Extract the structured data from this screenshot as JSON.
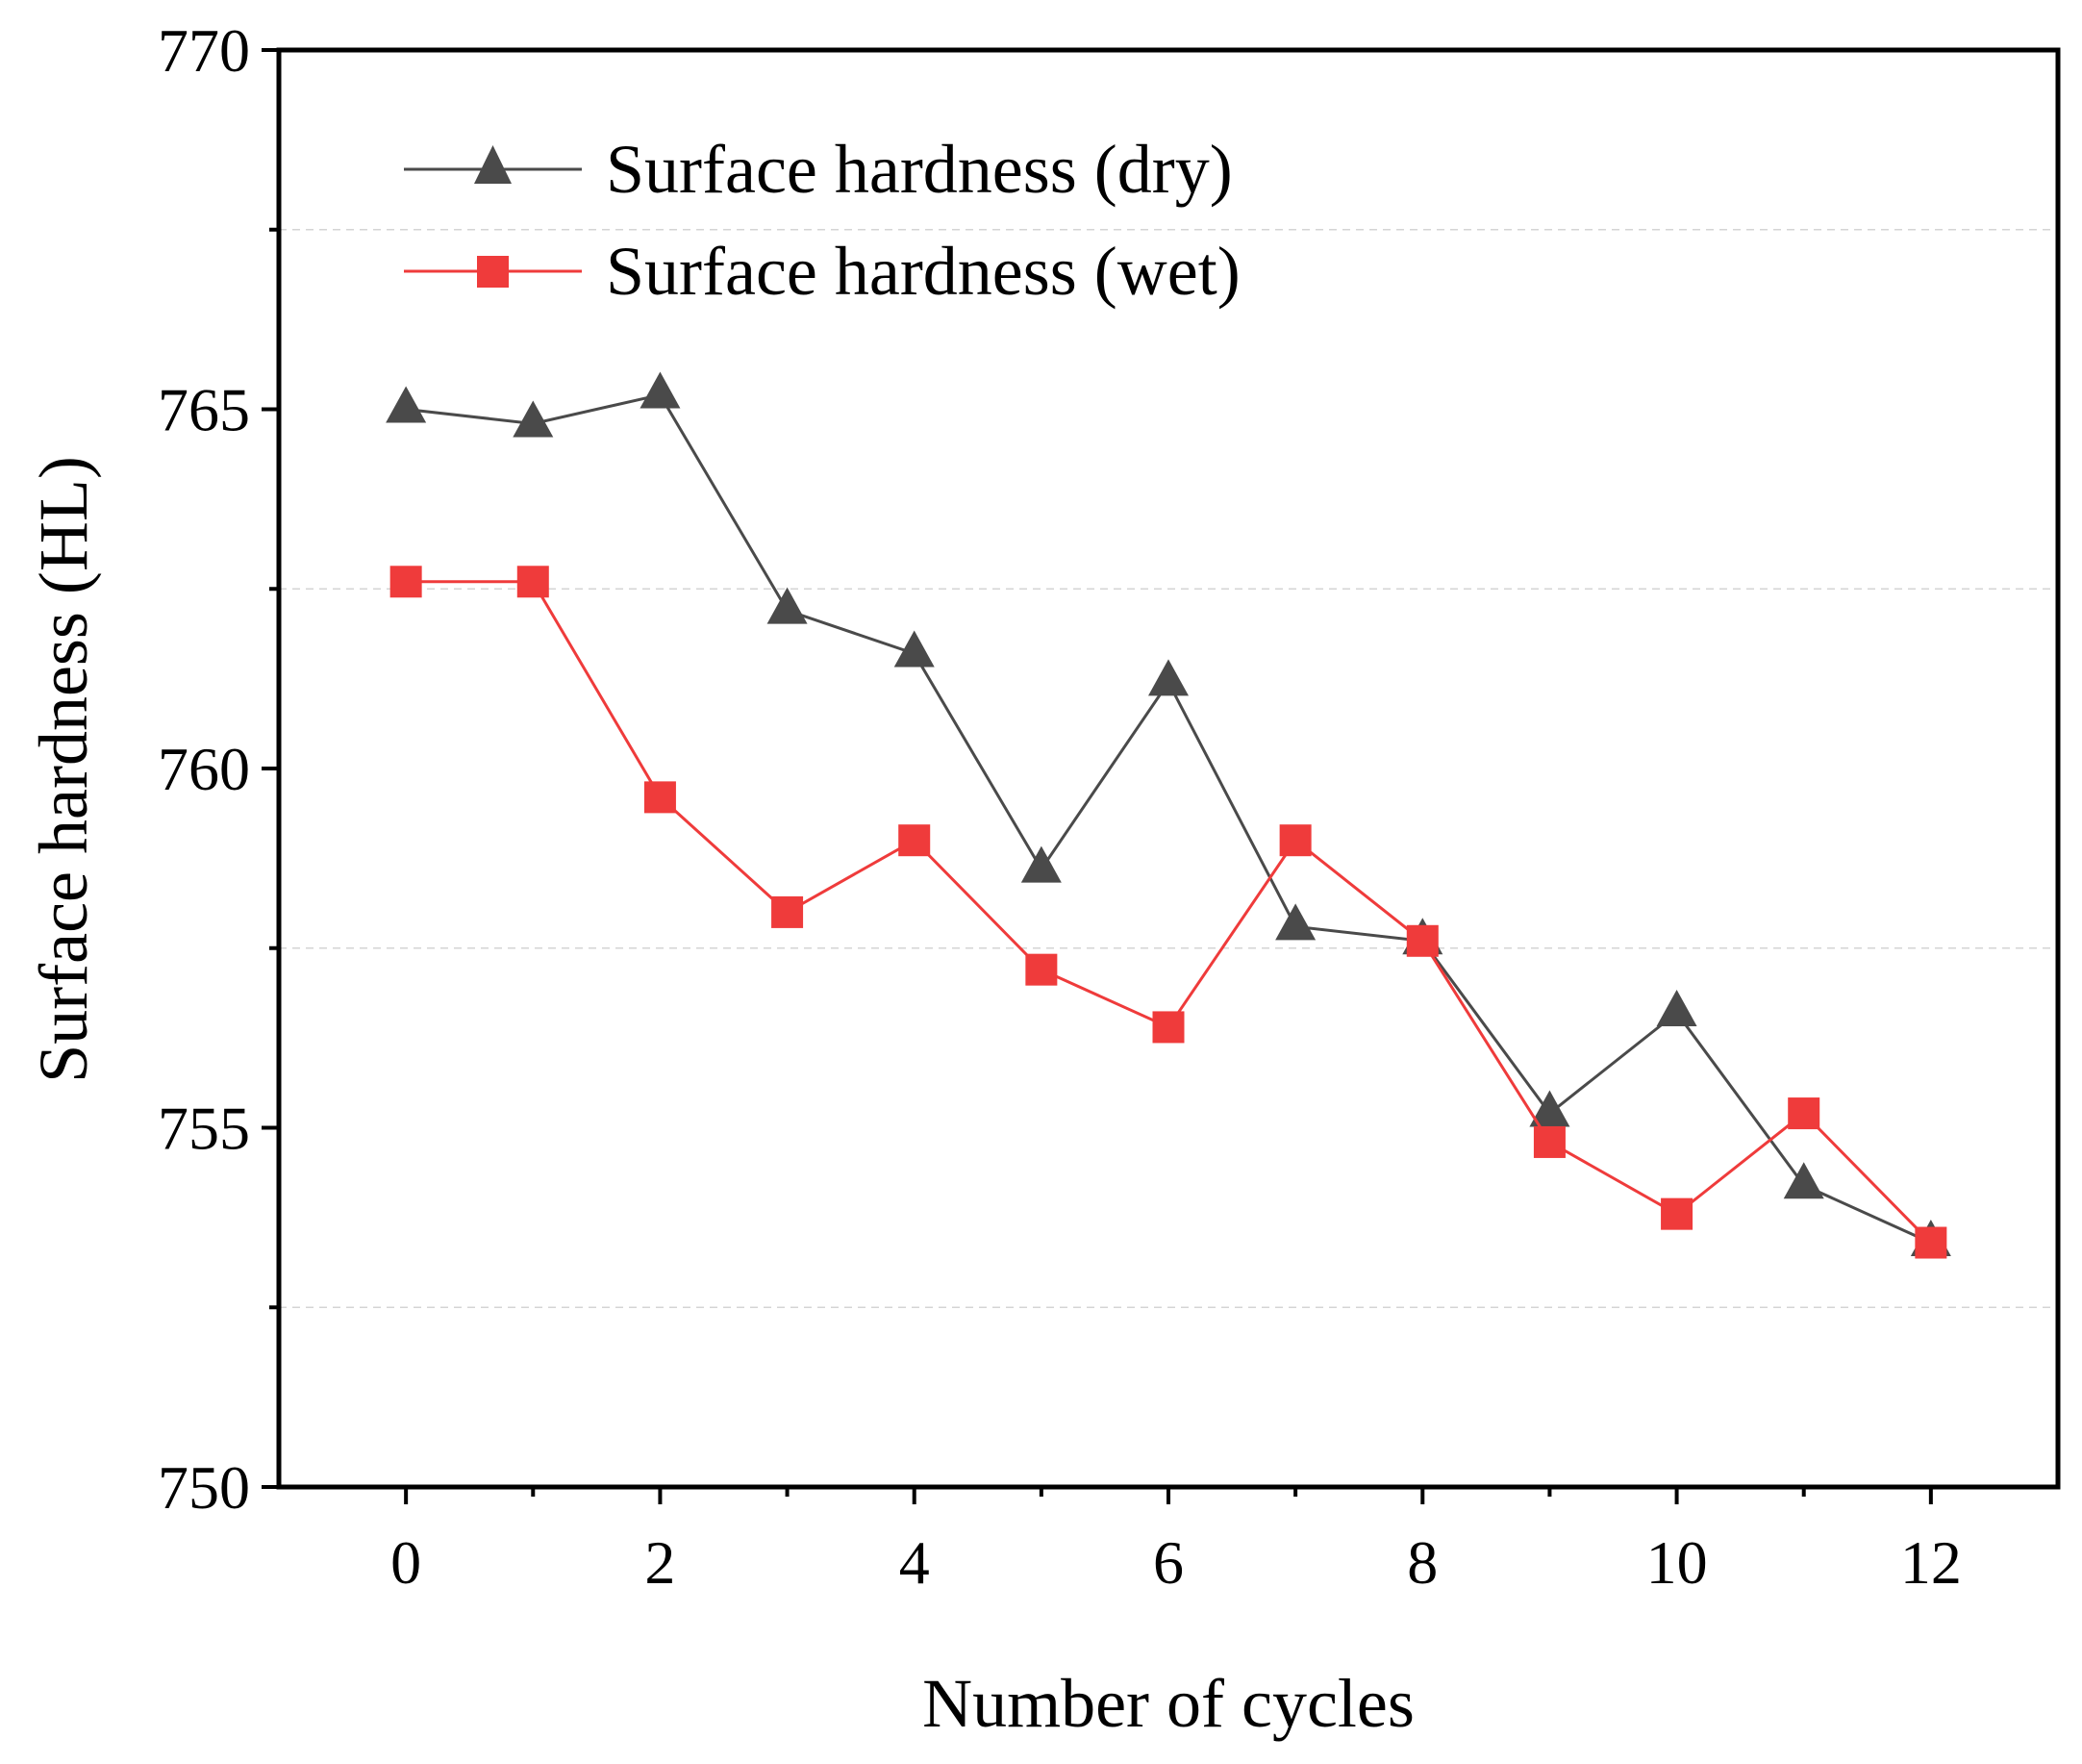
{
  "chart_data": {
    "type": "line",
    "title": "",
    "xlabel": "Number of cycles",
    "ylabel": "Surface hardness (HL)",
    "x": [
      0,
      1,
      2,
      3,
      4,
      5,
      6,
      7,
      8,
      9,
      10,
      11,
      12
    ],
    "xlim": [
      -1,
      13
    ],
    "ylim": [
      750,
      770
    ],
    "xticks": [
      0,
      2,
      4,
      6,
      8,
      10,
      12
    ],
    "xtick_labels": [
      "0",
      "2",
      "4",
      "6",
      "8",
      "10",
      "12"
    ],
    "yticks": [
      750,
      755,
      760,
      765,
      770
    ],
    "ytick_labels": [
      "750",
      "755",
      "760",
      "765",
      "770"
    ],
    "grid": "horizontal dashed at 752.5, 757.5, 762.5, 767.5",
    "legend_position": "top-left",
    "series": [
      {
        "name": "Surface hardness (dry)",
        "marker": "triangle",
        "color": "#4a4a4a",
        "values": [
          765.0,
          764.8,
          765.2,
          762.2,
          761.6,
          758.6,
          761.2,
          757.8,
          757.6,
          755.2,
          756.6,
          754.2,
          753.4
        ]
      },
      {
        "name": "Surface hardness (wet)",
        "marker": "square",
        "color": "#ef3b3b",
        "values": [
          762.6,
          762.6,
          759.6,
          758.0,
          759.0,
          757.2,
          756.4,
          759.0,
          757.6,
          754.8,
          753.8,
          755.2,
          753.4
        ]
      }
    ]
  }
}
